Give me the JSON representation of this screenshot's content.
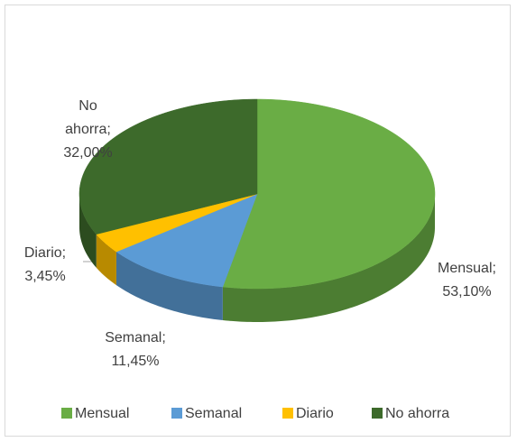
{
  "chart_data": {
    "type": "pie3d",
    "categories": [
      "Mensual",
      "Semanal",
      "Diario",
      "No ahorra"
    ],
    "values": [
      53.1,
      11.45,
      3.45,
      32.0
    ],
    "value_labels": [
      "53,10%",
      "11,45%",
      "3,45%",
      "32,00%"
    ],
    "label_separator": ";",
    "colors": [
      "#6aad45",
      "#5b9bd5",
      "#ffc000",
      "#3d6a2b"
    ],
    "legend": "bottom"
  }
}
